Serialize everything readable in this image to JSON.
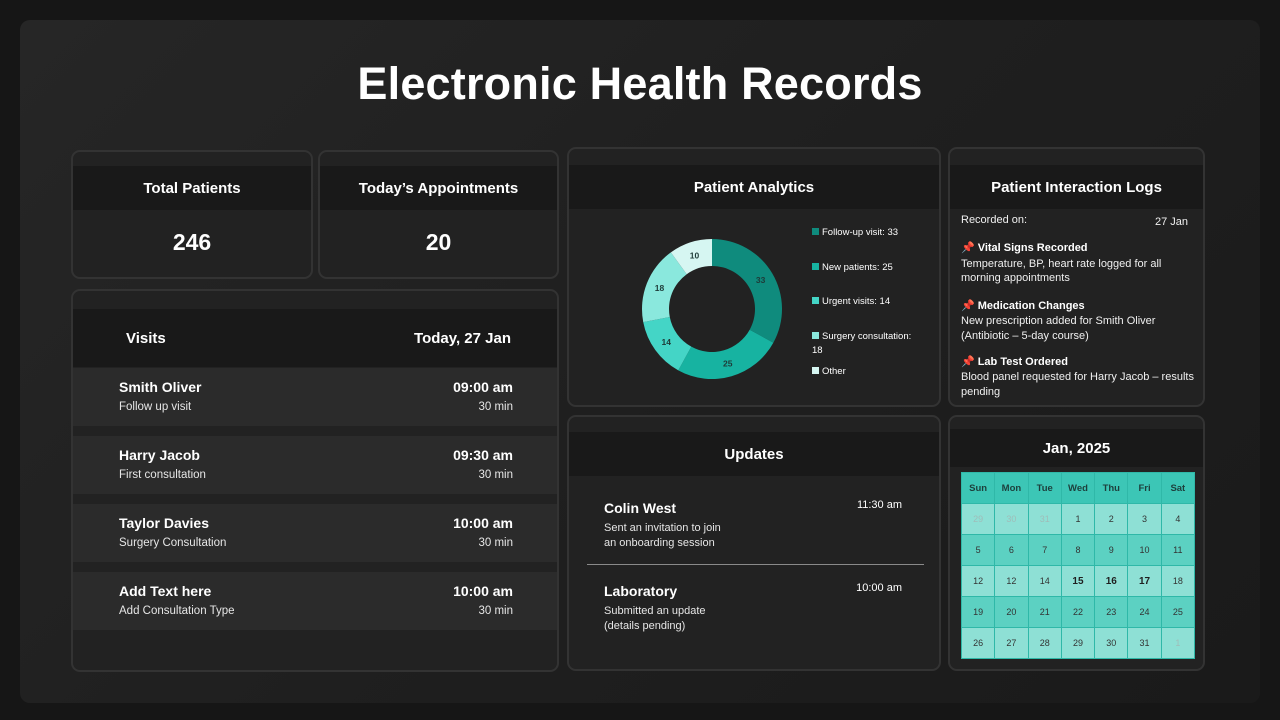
{
  "title": "Electronic Health Records",
  "stats": {
    "total_patients": {
      "label": "Total Patients",
      "value": "246"
    },
    "appointments": {
      "label": "Today’s Appointments",
      "value": "20"
    }
  },
  "visits": {
    "title": "Visits",
    "date": "Today, 27 Jan",
    "rows": [
      {
        "name": "Smith Oliver",
        "type": "Follow up visit",
        "time": "09:00 am",
        "duration": "30 min"
      },
      {
        "name": "Harry Jacob",
        "type": "First consultation",
        "time": "09:30 am",
        "duration": "30 min"
      },
      {
        "name": "Taylor Davies",
        "type": "Surgery Consultation",
        "time": "10:00 am",
        "duration": "30 min"
      },
      {
        "name": "Add Text here",
        "type": "Add Consultation Type",
        "time": "10:00 am",
        "duration": "30 min"
      }
    ]
  },
  "analytics": {
    "title": "Patient Analytics",
    "legend": [
      {
        "label": "Follow-up visit: 33"
      },
      {
        "label": "New patients: 25"
      },
      {
        "label": "Urgent visits: 14"
      },
      {
        "label": "Surgery consultation: 18"
      },
      {
        "label": "Other"
      }
    ]
  },
  "chart_data": {
    "type": "pie",
    "donut": true,
    "categories": [
      "Follow-up visit",
      "New patients",
      "Urgent visits",
      "Surgery consultation",
      "Other"
    ],
    "values": [
      33,
      25,
      14,
      18,
      10
    ],
    "colors": [
      "#0f8b7d",
      "#17b3a1",
      "#44d5c6",
      "#8ae8dd",
      "#d6f6f2"
    ],
    "data_labels": [
      "33",
      "25",
      "14",
      "18",
      "10"
    ]
  },
  "logs": {
    "title": "Patient Interaction Logs",
    "recorded_label": "Recorded on:",
    "recorded_date": "27 Jan",
    "entries": [
      {
        "heading": "Vital Signs Recorded",
        "line1": "Temperature, BP, heart rate logged for all",
        "line2": "morning appointments"
      },
      {
        "heading": "Medication Changes",
        "line1": "New prescription added for Smith Oliver",
        "line2": "(Antibiotic – 5-day course)"
      },
      {
        "heading": "Lab Test Ordered",
        "line1": "Blood panel requested for Harry Jacob – results",
        "line2": "pending"
      }
    ]
  },
  "updates": {
    "title": "Updates",
    "items": [
      {
        "name": "Colin West",
        "line1": "Sent an invitation to join",
        "line2": "an onboarding session",
        "time": "11:30 am"
      },
      {
        "name": "Laboratory",
        "line1": "Submitted an update",
        "line2": "(details pending)",
        "time": "10:00 am"
      }
    ]
  },
  "calendar": {
    "title": "Jan, 2025",
    "days": [
      "Sun",
      "Mon",
      "Tue",
      "Wed",
      "Thu",
      "Fri",
      "Sat"
    ],
    "weeks": [
      [
        "29",
        "30",
        "31",
        "1",
        "2",
        "3",
        "4"
      ],
      [
        "5",
        "6",
        "7",
        "8",
        "9",
        "10",
        "11"
      ],
      [
        "12",
        "12",
        "14",
        "15",
        "16",
        "17",
        "18"
      ],
      [
        "19",
        "20",
        "21",
        "22",
        "23",
        "24",
        "25"
      ],
      [
        "26",
        "27",
        "28",
        "29",
        "30",
        "31",
        "1"
      ]
    ]
  }
}
